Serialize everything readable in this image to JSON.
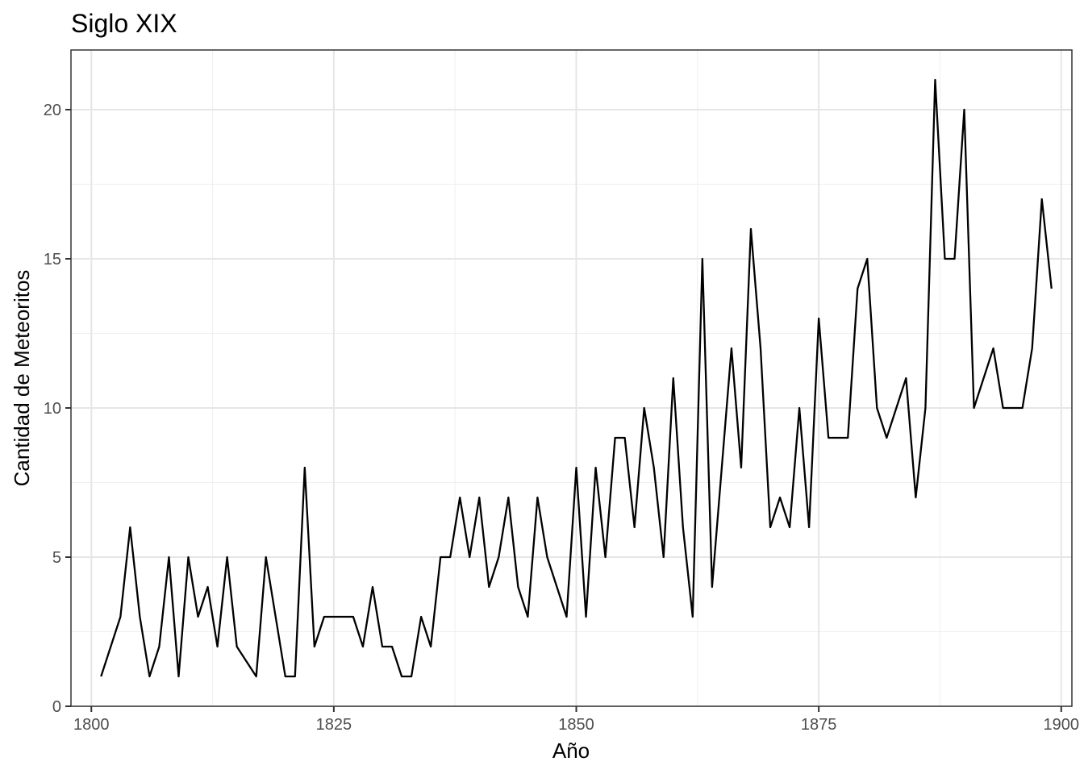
{
  "chart_data": {
    "type": "line",
    "title": "Siglo XIX",
    "xlabel": "Año",
    "ylabel": "Cantidad de Meteoritos",
    "xlim": [
      1797.9,
      1901.1
    ],
    "ylim": [
      0,
      22
    ],
    "x_ticks": [
      1800,
      1825,
      1850,
      1875,
      1900
    ],
    "y_ticks": [
      0,
      5,
      10,
      15,
      20
    ],
    "grid": true,
    "line_color": "#000000",
    "series": [
      {
        "x": [
          1801,
          1802,
          1803,
          1804,
          1805,
          1806,
          1807,
          1808,
          1809,
          1810,
          1811,
          1812,
          1813,
          1814,
          1815,
          1816,
          1817,
          1818,
          1819,
          1820,
          1821,
          1822,
          1823,
          1824,
          1825,
          1826,
          1827,
          1828,
          1829,
          1830,
          1831,
          1832,
          1833,
          1834,
          1835,
          1836,
          1837,
          1838,
          1839,
          1840,
          1841,
          1842,
          1843,
          1844,
          1845,
          1846,
          1847,
          1848,
          1849,
          1850,
          1851,
          1852,
          1853,
          1854,
          1855,
          1856,
          1857,
          1858,
          1859,
          1860,
          1861,
          1862,
          1863,
          1864,
          1865,
          1866,
          1867,
          1868,
          1869,
          1870,
          1871,
          1872,
          1873,
          1874,
          1875,
          1876,
          1877,
          1878,
          1879,
          1880,
          1881,
          1882,
          1883,
          1884,
          1885,
          1886,
          1887,
          1888,
          1889,
          1890,
          1891,
          1892,
          1893,
          1894,
          1895,
          1896,
          1897,
          1898,
          1899
        ],
        "values": [
          1,
          2,
          3,
          6,
          3,
          1,
          2,
          5,
          1,
          5,
          3,
          4,
          2,
          5,
          2,
          1.5,
          1,
          5,
          3,
          1,
          1,
          8,
          2,
          3,
          3,
          3,
          3,
          2,
          4,
          2,
          2,
          1,
          1,
          3,
          2,
          5,
          5,
          7,
          5,
          7,
          4,
          5,
          7,
          4,
          3,
          7,
          5,
          4,
          3,
          8,
          3,
          8,
          5,
          9,
          9,
          6,
          10,
          8,
          5,
          11,
          6,
          3,
          15,
          4,
          8,
          12,
          8,
          16,
          12,
          6,
          7,
          6,
          10,
          6,
          13,
          9,
          9,
          9,
          14,
          15,
          10,
          9,
          10,
          11,
          7,
          10,
          21,
          15,
          15,
          20,
          10,
          11,
          12,
          10,
          10,
          10,
          12,
          17,
          14
        ]
      }
    ]
  }
}
